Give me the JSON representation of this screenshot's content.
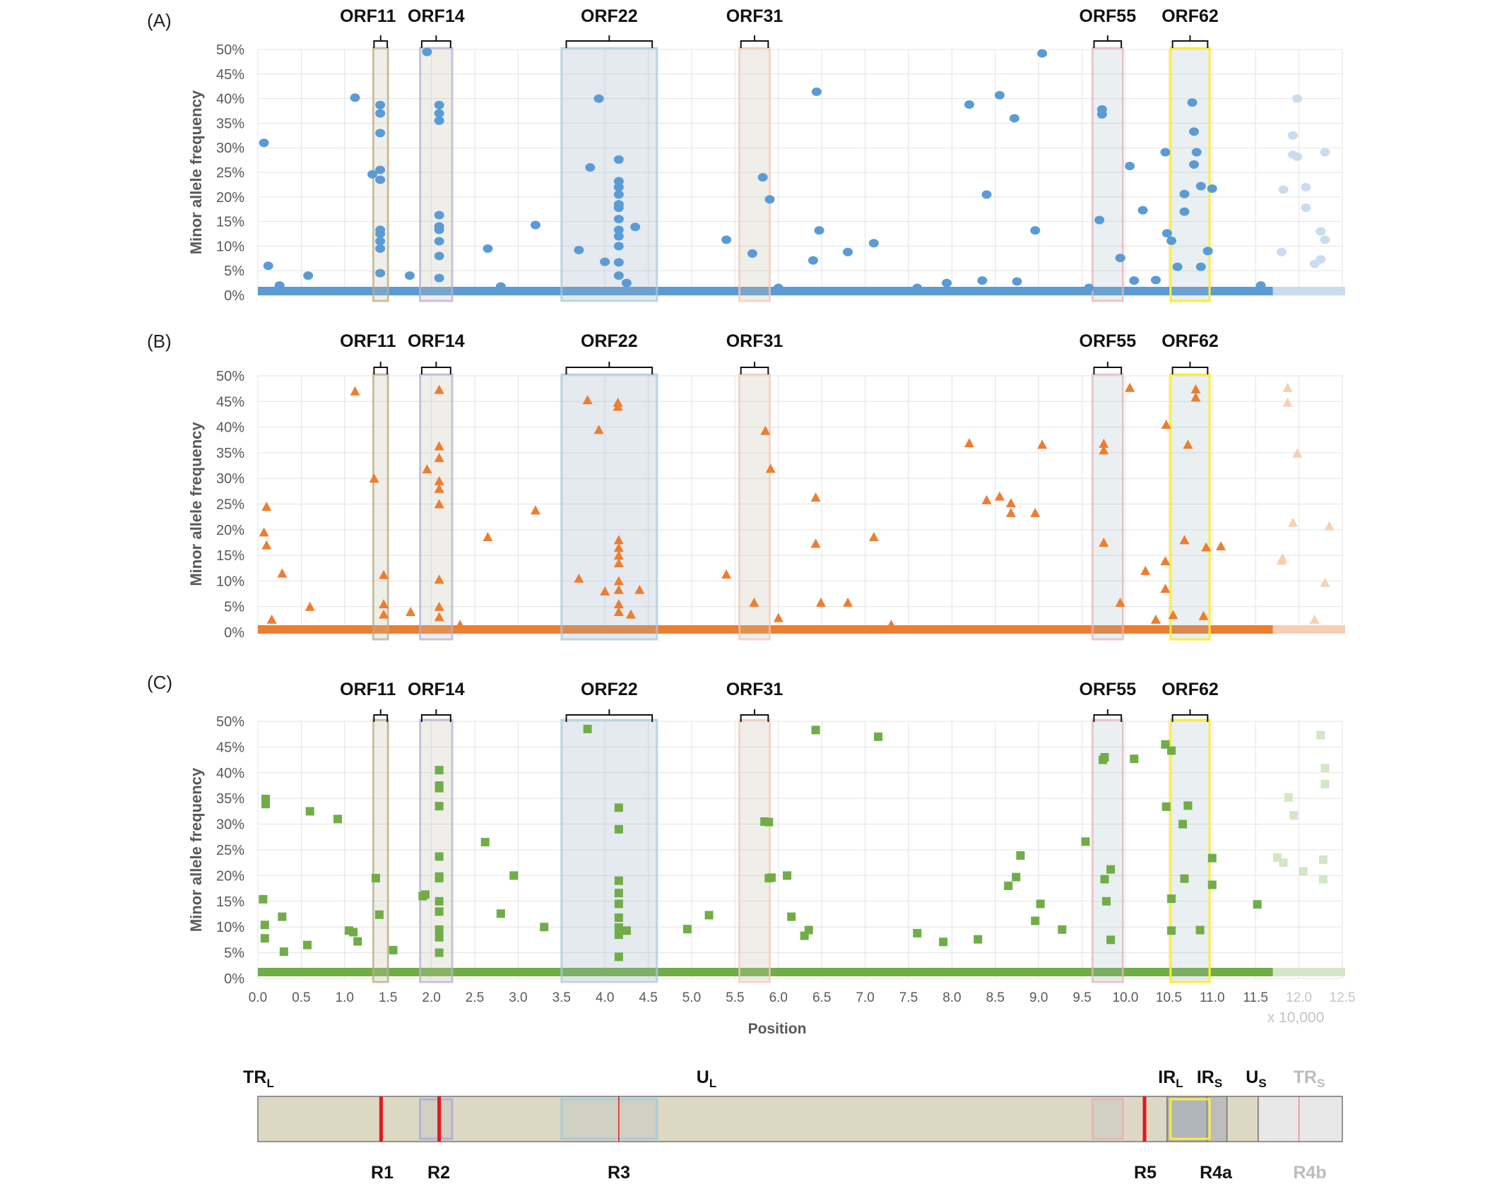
{
  "figure": {
    "panel_labels": [
      "(A)",
      "(B)",
      "(C)"
    ],
    "orf_labels": [
      "ORF11",
      "ORF14",
      "ORF22",
      "ORF31",
      "ORF55",
      "ORF62"
    ],
    "orf_ranges": [
      [
        13300,
        15000
      ],
      [
        18700,
        22400
      ],
      [
        35000,
        46000
      ],
      [
        55500,
        59000
      ],
      [
        96200,
        99700
      ],
      [
        105200,
        109700
      ]
    ],
    "orf_colors": [
      "#b7ad86",
      "#b5b0d6",
      "#a9cbdc",
      "#f4c8b4",
      "#e9b5b8",
      "#ffee33"
    ],
    "x_label": "Position",
    "x_multiplier": "x 10,000",
    "y_label": "Minor allele frequency",
    "colors": {
      "series_A": "#5b9bd5",
      "series_A_light": "#c9dcf0",
      "series_B": "#ed7d31",
      "series_B_light": "#f7cfb5",
      "series_C": "#70ad47",
      "series_C_light": "#d3e6c6",
      "highlight_yellow": "#ffee33",
      "region_red": "#e0191e"
    }
  },
  "chart_data": [
    {
      "type": "scatter",
      "panel": "(A)",
      "marker": "circle",
      "series_color": "#5b9bd5",
      "xlabel": "",
      "ylabel": "Minor allele frequency",
      "xlim": [
        0,
        125000
      ],
      "ylim": [
        0,
        50
      ],
      "yticks": [
        "0%",
        "5%",
        "10%",
        "15%",
        "20%",
        "25%",
        "30%",
        "35%",
        "40%",
        "45%",
        "50%"
      ],
      "faded_region_start": 117000,
      "points": [
        [
          700,
          31
        ],
        [
          1200,
          6
        ],
        [
          2500,
          2
        ],
        [
          5800,
          4
        ],
        [
          11200,
          40.2
        ],
        [
          13200,
          24.6
        ],
        [
          14100,
          38.7
        ],
        [
          14100,
          37
        ],
        [
          14100,
          33
        ],
        [
          14100,
          25.5
        ],
        [
          14100,
          23.5
        ],
        [
          14100,
          13.3
        ],
        [
          14100,
          12.5
        ],
        [
          14100,
          11
        ],
        [
          14100,
          9.5
        ],
        [
          14100,
          4.5
        ],
        [
          17500,
          4
        ],
        [
          19500,
          49.5
        ],
        [
          20900,
          38.7
        ],
        [
          20900,
          37
        ],
        [
          20900,
          35.5
        ],
        [
          20900,
          16.3
        ],
        [
          20900,
          14
        ],
        [
          20900,
          13.3
        ],
        [
          20900,
          11
        ],
        [
          20900,
          8
        ],
        [
          20900,
          3.5
        ],
        [
          26500,
          9.5
        ],
        [
          28000,
          1.8
        ],
        [
          32000,
          14.3
        ],
        [
          37000,
          9.2
        ],
        [
          38300,
          26
        ],
        [
          39300,
          40
        ],
        [
          40000,
          6.8
        ],
        [
          41600,
          27.6
        ],
        [
          41600,
          23.2
        ],
        [
          41600,
          22
        ],
        [
          41600,
          20.5
        ],
        [
          41600,
          18.5
        ],
        [
          41600,
          17.8
        ],
        [
          41600,
          15.5
        ],
        [
          41600,
          13.3
        ],
        [
          41600,
          12
        ],
        [
          41600,
          10
        ],
        [
          41600,
          6.7
        ],
        [
          41600,
          4
        ],
        [
          42500,
          2.5
        ],
        [
          43500,
          13.9
        ],
        [
          54000,
          11.3
        ],
        [
          57000,
          8.5
        ],
        [
          58200,
          24
        ],
        [
          59000,
          19.5
        ],
        [
          60000,
          1.5
        ],
        [
          64000,
          7.1
        ],
        [
          64400,
          41.4
        ],
        [
          64700,
          13.2
        ],
        [
          68000,
          8.8
        ],
        [
          71000,
          10.6
        ],
        [
          76000,
          1.5
        ],
        [
          79400,
          2.5
        ],
        [
          82000,
          38.8
        ],
        [
          83500,
          3
        ],
        [
          84000,
          20.5
        ],
        [
          85500,
          40.7
        ],
        [
          87200,
          36
        ],
        [
          87500,
          2.8
        ],
        [
          89600,
          13.2
        ],
        [
          90400,
          49.2
        ],
        [
          95800,
          1.5
        ],
        [
          97000,
          15.3
        ],
        [
          97300,
          37.8
        ],
        [
          97300,
          36.8
        ],
        [
          99400,
          7.6
        ],
        [
          100500,
          26.3
        ],
        [
          101000,
          3
        ],
        [
          102000,
          17.3
        ],
        [
          103500,
          3.1
        ],
        [
          104600,
          29.1
        ],
        [
          104800,
          12.6
        ],
        [
          105300,
          11.1
        ],
        [
          106000,
          5.8
        ],
        [
          106800,
          20.6
        ],
        [
          106800,
          17
        ],
        [
          107700,
          39.2
        ],
        [
          107900,
          33.3
        ],
        [
          107900,
          26.6
        ],
        [
          108200,
          29.1
        ],
        [
          108700,
          22.2
        ],
        [
          108700,
          5.8
        ],
        [
          109500,
          9
        ],
        [
          110000,
          21.7
        ],
        [
          115600,
          2
        ],
        [
          118000,
          8.8
        ],
        [
          118200,
          21.5
        ],
        [
          119300,
          28.6
        ],
        [
          119300,
          32.5
        ],
        [
          119800,
          28.2
        ],
        [
          119800,
          40
        ],
        [
          120800,
          22
        ],
        [
          120800,
          17.8
        ],
        [
          121800,
          6.4
        ],
        [
          122500,
          13
        ],
        [
          122500,
          7.3
        ],
        [
          123000,
          29.1
        ],
        [
          123000,
          11.3
        ]
      ]
    },
    {
      "type": "scatter",
      "panel": "(B)",
      "marker": "triangle",
      "series_color": "#ed7d31",
      "xlabel": "",
      "ylabel": "Minor allele frequency",
      "xlim": [
        0,
        125000
      ],
      "ylim": [
        0,
        50
      ],
      "yticks": [
        "0%",
        "5%",
        "10%",
        "15%",
        "20%",
        "25%",
        "30%",
        "35%",
        "40%",
        "45%",
        "50%"
      ],
      "faded_region_start": 117000,
      "points": [
        [
          700,
          19.5
        ],
        [
          1000,
          24.5
        ],
        [
          1000,
          17
        ],
        [
          1600,
          2.5
        ],
        [
          2800,
          11.5
        ],
        [
          6000,
          5
        ],
        [
          11200,
          47
        ],
        [
          13400,
          30
        ],
        [
          14500,
          11.2
        ],
        [
          14500,
          5.5
        ],
        [
          14500,
          3.5
        ],
        [
          17600,
          4
        ],
        [
          19500,
          31.8
        ],
        [
          20900,
          47.3
        ],
        [
          20900,
          36.3
        ],
        [
          20900,
          34
        ],
        [
          20900,
          29.5
        ],
        [
          20900,
          28
        ],
        [
          20900,
          25
        ],
        [
          20900,
          10.3
        ],
        [
          20900,
          5
        ],
        [
          20900,
          3
        ],
        [
          23300,
          1.5
        ],
        [
          26500,
          18.6
        ],
        [
          32000,
          23.8
        ],
        [
          37000,
          10.5
        ],
        [
          38000,
          45.3
        ],
        [
          39300,
          39.5
        ],
        [
          40000,
          8
        ],
        [
          41500,
          44.8
        ],
        [
          41500,
          44
        ],
        [
          41600,
          18
        ],
        [
          41600,
          16.5
        ],
        [
          41600,
          15
        ],
        [
          41600,
          13.5
        ],
        [
          41600,
          10
        ],
        [
          41600,
          8.3
        ],
        [
          41600,
          5.5
        ],
        [
          41600,
          4
        ],
        [
          43000,
          3.5
        ],
        [
          44000,
          8.3
        ],
        [
          54000,
          11.3
        ],
        [
          57200,
          5.8
        ],
        [
          58500,
          39.3
        ],
        [
          59100,
          31.9
        ],
        [
          60000,
          2.8
        ],
        [
          64300,
          17.3
        ],
        [
          64300,
          26.3
        ],
        [
          64900,
          5.8
        ],
        [
          68000,
          5.8
        ],
        [
          71000,
          18.6
        ],
        [
          73000,
          1.5
        ],
        [
          82000,
          36.9
        ],
        [
          84000,
          25.8
        ],
        [
          85500,
          26.5
        ],
        [
          86800,
          25.2
        ],
        [
          86800,
          23.3
        ],
        [
          89600,
          23.3
        ],
        [
          90400,
          36.6
        ],
        [
          97500,
          36.8
        ],
        [
          97500,
          35.5
        ],
        [
          97500,
          17.5
        ],
        [
          99400,
          5.8
        ],
        [
          100500,
          47.7
        ],
        [
          102300,
          12
        ],
        [
          103500,
          2.5
        ],
        [
          104600,
          13.9
        ],
        [
          104600,
          8.5
        ],
        [
          104700,
          40.5
        ],
        [
          105500,
          3.4
        ],
        [
          106800,
          18
        ],
        [
          107200,
          36.6
        ],
        [
          108100,
          47.4
        ],
        [
          108100,
          45.8
        ],
        [
          109000,
          3.2
        ],
        [
          109300,
          16.6
        ],
        [
          111000,
          16.8
        ],
        [
          118000,
          14
        ],
        [
          118100,
          14.5
        ],
        [
          118700,
          47.7
        ],
        [
          118700,
          44.8
        ],
        [
          119800,
          34.9
        ],
        [
          119300,
          21.4
        ],
        [
          121800,
          2.5
        ],
        [
          123000,
          9.7
        ],
        [
          123500,
          20.7
        ]
      ]
    },
    {
      "type": "scatter",
      "panel": "(C)",
      "marker": "square",
      "series_color": "#70ad47",
      "xlabel": "Position",
      "ylabel": "Minor allele frequency",
      "xlim": [
        0,
        125000
      ],
      "ylim": [
        0,
        50
      ],
      "xticks": [
        "0.0",
        "0.5",
        "1.0",
        "1.5",
        "2.0",
        "2.5",
        "3.0",
        "3.5",
        "4.0",
        "4.5",
        "5.0",
        "5.5",
        "6.0",
        "6.5",
        "7.0",
        "7.5",
        "8.0",
        "8.5",
        "9.0",
        "9.5",
        "10.0",
        "10.5",
        "11.0",
        "11.5",
        "12.0",
        "12.5"
      ],
      "yticks": [
        "0%",
        "5%",
        "10%",
        "15%",
        "20%",
        "25%",
        "30%",
        "35%",
        "40%",
        "45%",
        "50%"
      ],
      "faded_region_start": 117000,
      "points": [
        [
          600,
          15.4
        ],
        [
          800,
          10.4
        ],
        [
          800,
          7.8
        ],
        [
          900,
          34.9
        ],
        [
          900,
          33.9
        ],
        [
          2800,
          12
        ],
        [
          3000,
          5.2
        ],
        [
          5700,
          6.5
        ],
        [
          6000,
          32.5
        ],
        [
          9200,
          31
        ],
        [
          10500,
          9.3
        ],
        [
          11000,
          9
        ],
        [
          11500,
          7.2
        ],
        [
          13600,
          19.5
        ],
        [
          14000,
          12.4
        ],
        [
          15600,
          5.5
        ],
        [
          19000,
          16
        ],
        [
          19300,
          16.3
        ],
        [
          20900,
          40.5
        ],
        [
          20900,
          37.5
        ],
        [
          20900,
          37
        ],
        [
          20900,
          33.5
        ],
        [
          20900,
          23.7
        ],
        [
          20900,
          19.8
        ],
        [
          20900,
          19.5
        ],
        [
          20900,
          15
        ],
        [
          20900,
          13
        ],
        [
          20900,
          9.5
        ],
        [
          20900,
          8
        ],
        [
          20900,
          5
        ],
        [
          26200,
          26.5
        ],
        [
          28000,
          12.6
        ],
        [
          29500,
          20
        ],
        [
          33000,
          10
        ],
        [
          38000,
          48.5
        ],
        [
          41600,
          33.2
        ],
        [
          41600,
          29
        ],
        [
          41600,
          19
        ],
        [
          41600,
          16.6
        ],
        [
          41600,
          14.5
        ],
        [
          41600,
          11.8
        ],
        [
          41600,
          9.9
        ],
        [
          41600,
          8.5
        ],
        [
          41600,
          4.2
        ],
        [
          42500,
          9.3
        ],
        [
          49500,
          9.6
        ],
        [
          52000,
          12.3
        ],
        [
          58400,
          30.5
        ],
        [
          58900,
          30.4
        ],
        [
          58900,
          19.5
        ],
        [
          59200,
          19.6
        ],
        [
          61000,
          20
        ],
        [
          61500,
          12
        ],
        [
          63000,
          8.3
        ],
        [
          63500,
          9.4
        ],
        [
          64300,
          48.3
        ],
        [
          71500,
          47
        ],
        [
          76000,
          8.8
        ],
        [
          79000,
          7.1
        ],
        [
          83000,
          7.6
        ],
        [
          86500,
          18
        ],
        [
          87400,
          19.7
        ],
        [
          87900,
          23.9
        ],
        [
          89600,
          11.2
        ],
        [
          90200,
          14.5
        ],
        [
          92700,
          9.5
        ],
        [
          95400,
          26.6
        ],
        [
          97400,
          42.5
        ],
        [
          97600,
          43
        ],
        [
          97600,
          19.3
        ],
        [
          97800,
          15
        ],
        [
          98300,
          21.2
        ],
        [
          98300,
          7.5
        ],
        [
          101000,
          42.7
        ],
        [
          104600,
          45.5
        ],
        [
          104700,
          33.4
        ],
        [
          105300,
          44.3
        ],
        [
          105300,
          15.5
        ],
        [
          105300,
          9.3
        ],
        [
          106600,
          30
        ],
        [
          106800,
          19.4
        ],
        [
          107200,
          33.6
        ],
        [
          108600,
          9.4
        ],
        [
          110000,
          23.4
        ],
        [
          110000,
          18.2
        ],
        [
          115200,
          14.4
        ],
        [
          117500,
          23.5
        ],
        [
          118800,
          35.2
        ],
        [
          119400,
          31.7
        ],
        [
          120500,
          20.8
        ],
        [
          118200,
          22.5
        ],
        [
          122500,
          47.3
        ],
        [
          123000,
          40.9
        ],
        [
          123000,
          37.8
        ],
        [
          122800,
          23.1
        ],
        [
          122800,
          19.3
        ]
      ]
    }
  ],
  "genome_map": {
    "region_labels_top": [
      "TR",
      "U",
      "IR",
      "IR",
      "U",
      "TR"
    ],
    "region_subscripts": [
      "L",
      "L",
      "L",
      "S",
      "S",
      "S"
    ],
    "region_labels_bottom": [
      "R1",
      "R2",
      "R3",
      "R5",
      "R4a",
      "R4b"
    ],
    "segments": [
      [
        0,
        104800,
        "#ddd8c3"
      ],
      [
        104800,
        109400,
        "#b3b6ba"
      ],
      [
        109400,
        111700,
        "#bdbdbd"
      ],
      [
        111700,
        115300,
        "#ddd8c3"
      ],
      [
        115300,
        125000,
        "#e8e8e8"
      ]
    ],
    "red_lines": [
      14200,
      20900,
      41600,
      102200,
      120000
    ]
  }
}
